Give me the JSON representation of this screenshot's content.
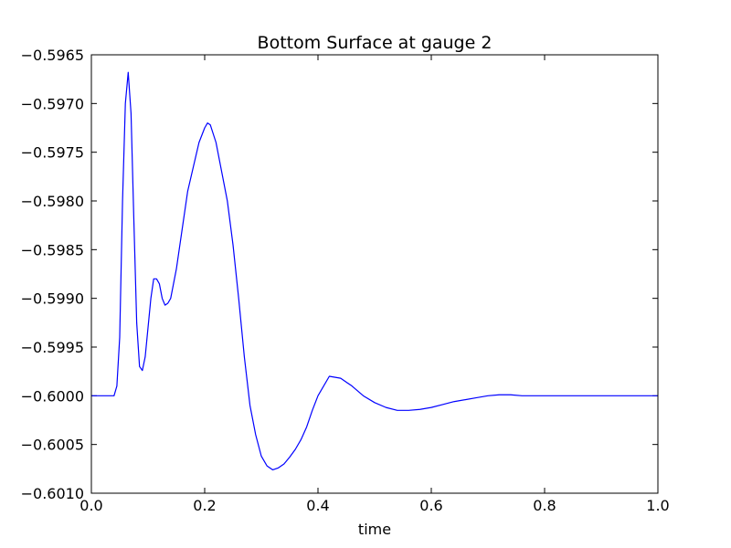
{
  "chart_data": {
    "type": "line",
    "title": "Bottom Surface at gauge 2",
    "xlabel": "time",
    "ylabel": "",
    "xlim": [
      0.0,
      1.0
    ],
    "ylim": [
      -0.601,
      -0.5965
    ],
    "grid": false,
    "x_ticks": [
      0.0,
      0.2,
      0.4,
      0.6,
      0.8,
      1.0
    ],
    "x_tick_labels": [
      "0.0",
      "0.2",
      "0.4",
      "0.6",
      "0.8",
      "1.0"
    ],
    "y_ticks": [
      -0.601,
      -0.6005,
      -0.6,
      -0.5995,
      -0.599,
      -0.5985,
      -0.598,
      -0.5975,
      -0.597,
      -0.5965
    ],
    "y_tick_labels": [
      "−0.6010",
      "−0.6005",
      "−0.6000",
      "−0.5995",
      "−0.5990",
      "−0.5985",
      "−0.5980",
      "−0.5975",
      "−0.5970",
      "−0.5965"
    ],
    "series": [
      {
        "color": "#0000ff",
        "x": [
          0.0,
          0.02,
          0.04,
          0.045,
          0.05,
          0.055,
          0.06,
          0.065,
          0.07,
          0.075,
          0.08,
          0.085,
          0.09,
          0.095,
          0.1,
          0.105,
          0.11,
          0.115,
          0.12,
          0.125,
          0.13,
          0.135,
          0.14,
          0.15,
          0.16,
          0.17,
          0.18,
          0.19,
          0.2,
          0.205,
          0.21,
          0.22,
          0.23,
          0.24,
          0.25,
          0.26,
          0.27,
          0.28,
          0.29,
          0.3,
          0.31,
          0.32,
          0.33,
          0.34,
          0.35,
          0.36,
          0.37,
          0.38,
          0.39,
          0.4,
          0.42,
          0.44,
          0.46,
          0.48,
          0.5,
          0.52,
          0.54,
          0.56,
          0.58,
          0.6,
          0.62,
          0.64,
          0.66,
          0.68,
          0.7,
          0.72,
          0.74,
          0.76,
          0.78,
          0.8,
          0.82,
          0.84,
          0.86,
          0.88,
          0.9,
          0.92,
          0.94,
          0.96,
          0.98,
          1.0
        ],
        "y": [
          -0.6,
          -0.6,
          -0.6,
          -0.5999,
          -0.5994,
          -0.598,
          -0.597,
          -0.59668,
          -0.5971,
          -0.5982,
          -0.59925,
          -0.5997,
          -0.59974,
          -0.5996,
          -0.5993,
          -0.599,
          -0.5988,
          -0.5988,
          -0.59885,
          -0.599,
          -0.59907,
          -0.59905,
          -0.599,
          -0.5987,
          -0.5983,
          -0.5979,
          -0.59765,
          -0.5974,
          -0.59725,
          -0.5972,
          -0.59722,
          -0.5974,
          -0.5977,
          -0.598,
          -0.59845,
          -0.599,
          -0.5996,
          -0.6001,
          -0.6004,
          -0.60062,
          -0.60072,
          -0.60076,
          -0.60074,
          -0.6007,
          -0.60063,
          -0.60055,
          -0.60045,
          -0.60032,
          -0.60015,
          -0.6,
          -0.5998,
          -0.59982,
          -0.5999,
          -0.6,
          -0.60007,
          -0.60012,
          -0.60015,
          -0.60015,
          -0.60014,
          -0.60012,
          -0.60009,
          -0.60006,
          -0.60004,
          -0.60002,
          -0.6,
          -0.59999,
          -0.59999,
          -0.6,
          -0.6,
          -0.6,
          -0.6,
          -0.6,
          -0.6,
          -0.6,
          -0.6,
          -0.6,
          -0.6,
          -0.6,
          -0.6,
          -0.6
        ]
      }
    ]
  }
}
